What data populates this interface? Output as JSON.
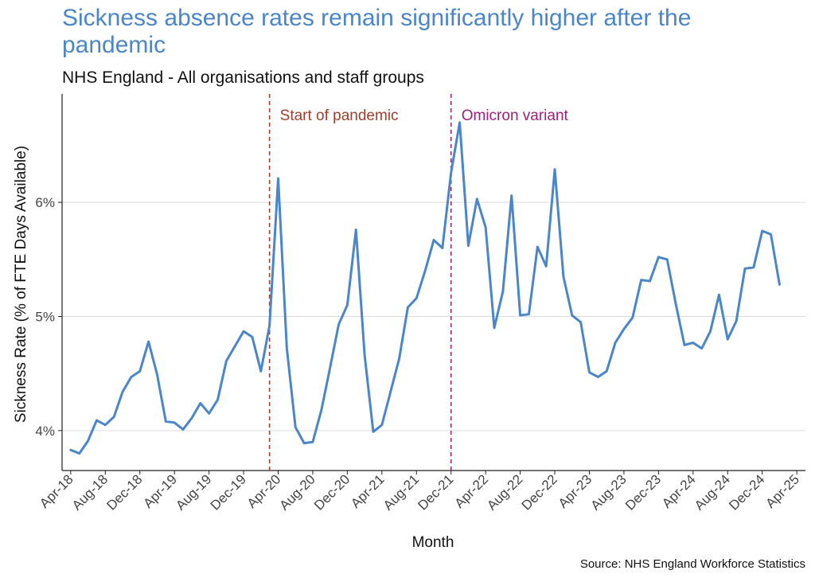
{
  "colors": {
    "title": "#4a86c8",
    "line": "#4a86c8",
    "pandemic": "#a0402c",
    "omicron": "#a0207e",
    "grid": "#dcdcdc"
  },
  "chart_data": {
    "type": "line",
    "title": "Sickness absence rates remain significantly higher after the pandemic",
    "subtitle": "NHS England - All organisations and staff groups",
    "xlabel": "Month",
    "ylabel": "Sickness Rate (% of FTE Days Available)",
    "source": "Source: NHS England Workforce Statistics",
    "ylim": [
      3.65,
      6.95
    ],
    "y_ticks": [
      {
        "value": 4,
        "label": "4%"
      },
      {
        "value": 5,
        "label": "5%"
      },
      {
        "value": 6,
        "label": "6%"
      }
    ],
    "x_range": [
      "2018-03",
      "2025-05"
    ],
    "x_ticks": [
      "Apr-18",
      "Aug-18",
      "Dec-18",
      "Apr-19",
      "Aug-19",
      "Dec-19",
      "Apr-20",
      "Aug-20",
      "Dec-20",
      "Apr-21",
      "Aug-21",
      "Dec-21",
      "Apr-22",
      "Aug-22",
      "Dec-22",
      "Apr-23",
      "Aug-23",
      "Dec-23",
      "Apr-24",
      "Aug-24",
      "Dec-24",
      "Apr-25"
    ],
    "grid": "horizontal",
    "annotations": [
      {
        "x": "2020-03",
        "label": "Start of pandemic",
        "color": "#a0402c"
      },
      {
        "x": "2021-12",
        "label": "Omicron variant",
        "color": "#a0207e"
      }
    ],
    "series": [
      {
        "x": [
          "2018-04",
          "2018-05",
          "2018-06",
          "2018-07",
          "2018-08",
          "2018-09",
          "2018-10",
          "2018-11",
          "2018-12",
          "2019-01",
          "2019-02",
          "2019-03",
          "2019-04",
          "2019-05",
          "2019-06",
          "2019-07",
          "2019-08",
          "2019-09",
          "2019-10",
          "2019-11",
          "2019-12",
          "2020-01",
          "2020-02",
          "2020-03",
          "2020-04",
          "2020-05",
          "2020-06",
          "2020-07",
          "2020-08",
          "2020-09",
          "2020-10",
          "2020-11",
          "2020-12",
          "2021-01",
          "2021-02",
          "2021-03",
          "2021-04",
          "2021-05",
          "2021-06",
          "2021-07",
          "2021-08",
          "2021-09",
          "2021-10",
          "2021-11",
          "2021-12",
          "2022-01",
          "2022-02",
          "2022-03",
          "2022-04",
          "2022-05",
          "2022-06",
          "2022-07",
          "2022-08",
          "2022-09",
          "2022-10",
          "2022-11",
          "2022-12",
          "2023-01",
          "2023-02",
          "2023-03",
          "2023-04",
          "2023-05",
          "2023-06",
          "2023-07",
          "2023-08",
          "2023-09",
          "2023-10",
          "2023-11",
          "2023-12",
          "2024-01",
          "2024-02",
          "2024-03",
          "2024-04",
          "2024-05",
          "2024-06",
          "2024-07",
          "2024-08",
          "2024-09",
          "2024-10",
          "2024-11",
          "2024-12",
          "2025-01",
          "2025-02"
        ],
        "values": [
          3.83,
          3.8,
          3.91,
          4.09,
          4.05,
          4.12,
          4.34,
          4.47,
          4.52,
          4.78,
          4.49,
          4.08,
          4.07,
          4.01,
          4.11,
          4.24,
          4.15,
          4.27,
          4.61,
          4.74,
          4.87,
          4.82,
          4.52,
          4.92,
          6.21,
          4.72,
          4.03,
          3.89,
          3.9,
          4.18,
          4.55,
          4.93,
          5.1,
          5.76,
          4.66,
          3.99,
          4.05,
          4.34,
          4.63,
          5.08,
          5.16,
          5.4,
          5.67,
          5.6,
          6.26,
          6.7,
          5.62,
          6.03,
          5.78,
          4.9,
          5.22,
          6.06,
          5.01,
          5.02,
          5.61,
          5.44,
          6.29,
          5.35,
          5.01,
          4.95,
          4.51,
          4.47,
          4.52,
          4.77,
          4.89,
          4.99,
          5.32,
          5.31,
          5.52,
          5.5,
          5.11,
          4.75,
          4.77,
          4.72,
          4.87,
          5.19,
          4.8,
          4.96,
          5.42,
          5.43,
          5.75,
          5.72,
          5.28
        ]
      }
    ]
  }
}
